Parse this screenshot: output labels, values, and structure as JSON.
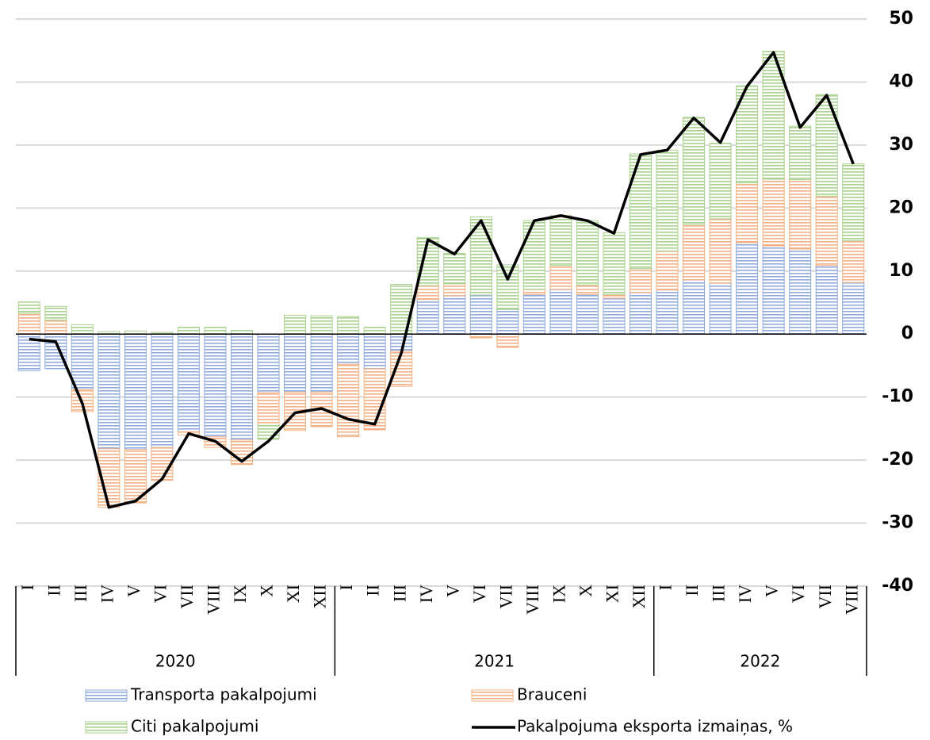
{
  "chart_data": {
    "type": "bar",
    "groups": [
      {
        "label": "2020",
        "categories": [
          "I",
          "II",
          "III",
          "IV",
          "V",
          "VI",
          "VII",
          "VIII",
          "IX",
          "X",
          "XI",
          "XII"
        ]
      },
      {
        "label": "2021",
        "categories": [
          "I",
          "II",
          "III",
          "IV",
          "V",
          "VI",
          "VII",
          "VIII",
          "IX",
          "X",
          "XI",
          "XII"
        ]
      },
      {
        "label": "2022",
        "categories": [
          "I",
          "II",
          "III",
          "IV",
          "V",
          "VI",
          "VII",
          "VIII"
        ]
      }
    ],
    "series": [
      {
        "name": "Transporta pakalpojumi",
        "color": "#8faadc",
        "values": [
          -5.8,
          -5.5,
          -8.8,
          -18.2,
          -18.3,
          -18,
          -15.5,
          -16.3,
          -16.8,
          -9.3,
          -9.2,
          -9.2,
          -4.8,
          -5.5,
          -2.7,
          5.5,
          6.1,
          6.2,
          3.9,
          6.3,
          7.1,
          6.3,
          5.7,
          6.6,
          7.0,
          8.6,
          8.1,
          14.5,
          14.0,
          13.5,
          10.9,
          8.2
        ]
      },
      {
        "name": "Brauceni",
        "color": "#f4b183",
        "values": [
          3.3,
          2.2,
          -3.5,
          -9.3,
          -8.5,
          -5.2,
          -0.5,
          -1.7,
          -3.9,
          -5.2,
          -6.1,
          -5.5,
          -11.5,
          -9.7,
          -5.6,
          2.2,
          1.9,
          -0.6,
          -2.1,
          0.8,
          3.8,
          1.5,
          0.6,
          3.8,
          6.2,
          8.8,
          10.2,
          9.5,
          10.6,
          11,
          11,
          6.6
        ]
      },
      {
        "name": "Citi pakalpojumi",
        "color": "#a9d18e",
        "values": [
          1.8,
          2.2,
          1.5,
          0.4,
          0.5,
          0.3,
          1.1,
          1.1,
          0.6,
          -2.2,
          3.0,
          2.9,
          2.8,
          1.1,
          7.9,
          7.6,
          4.8,
          12.4,
          7.1,
          10.9,
          7.9,
          10.2,
          9.8,
          18.2,
          16,
          17,
          12,
          15.4,
          20.3,
          8.5,
          16.1,
          12.2
        ]
      },
      {
        "name": "Pakalpojuma eksporta izmaiņas, %",
        "type": "line",
        "color": "#000000",
        "values": [
          -0.8,
          -1.2,
          -11,
          -27.5,
          -26.5,
          -23,
          -15.8,
          -17,
          -20.2,
          -17,
          -12.5,
          -11.8,
          -13.5,
          -14.3,
          -3,
          15,
          12.7,
          18,
          8.7,
          18,
          18.8,
          18,
          16,
          28.5,
          29.2,
          34.3,
          30.4,
          39.3,
          44.7,
          32.8,
          37.9,
          27
        ]
      }
    ],
    "ylim": [
      -40,
      50
    ],
    "yticks": [
      -40,
      -30,
      -20,
      -10,
      0,
      10,
      20,
      30,
      40,
      50
    ],
    "grid": true
  }
}
